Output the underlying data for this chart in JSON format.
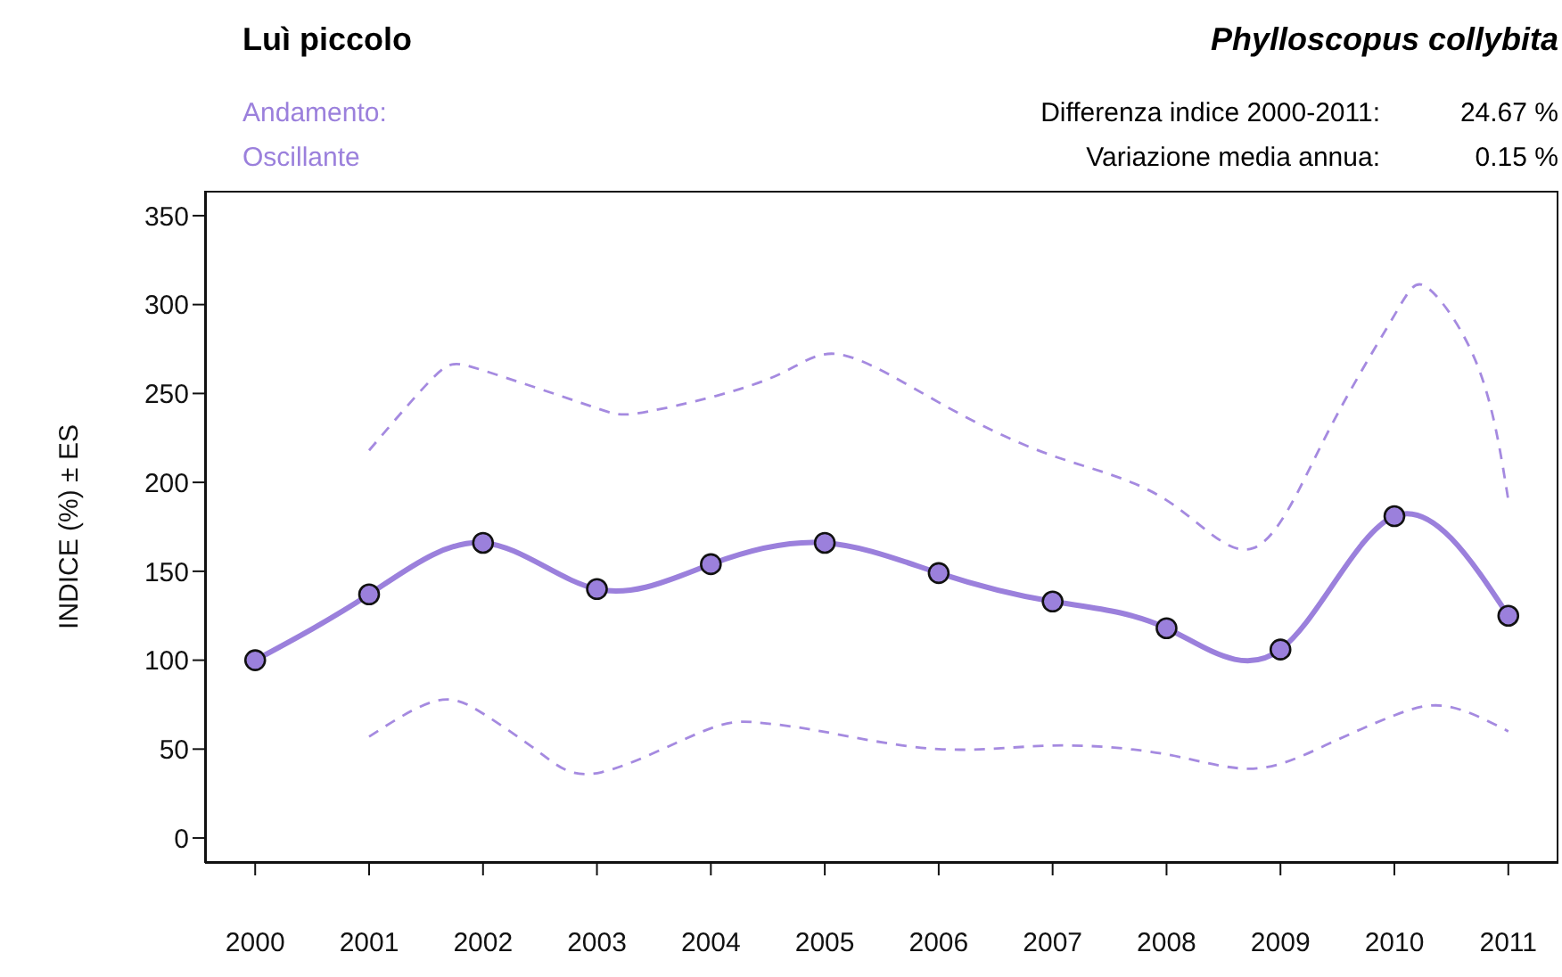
{
  "chart_data": {
    "type": "line",
    "title": "Luì piccolo",
    "subtitle": "Phylloscopus collybita",
    "ylabel": "INDICE (%) ± ES",
    "annotations": [
      "Andamento:",
      "Oscillante",
      "Differenza indice 2000-2011:",
      "24.67 %",
      "Variazione media annua:",
      "0.15 %"
    ],
    "series": [
      {
        "color": "#9b80dc",
        "marker": "circle",
        "line_style": "solid",
        "x": [
          2000,
          2001,
          2002,
          2003,
          2004,
          2005,
          2006,
          2007,
          2008,
          2009,
          2010,
          2011
        ],
        "values": [
          100,
          137,
          166,
          140,
          154,
          166,
          149,
          133,
          118,
          106,
          181,
          125
        ]
      },
      {
        "color": "#a58ae0",
        "marker": "none",
        "line_style": "dashed",
        "x": [
          2001,
          2001.58,
          2002,
          2002.94,
          2003.46,
          2004.5,
          2005.13,
          2006,
          2007,
          2008,
          2008.76,
          2009.39,
          2010,
          2010.3,
          2010.74,
          2011
        ],
        "values": [
          218,
          260,
          263,
          243,
          240,
          258,
          272,
          245,
          215,
          190,
          163,
          225,
          294,
          309,
          264,
          190
        ]
      },
      {
        "color": "#a58ae0",
        "marker": "none",
        "line_style": "dashed",
        "x": [
          2001,
          2001.58,
          2002,
          2002.52,
          2003.04,
          2003.93,
          2004.4,
          2004.97,
          2006,
          2007,
          2008,
          2008.76,
          2009.39,
          2010,
          2010.47,
          2011
        ],
        "values": [
          57,
          77,
          70,
          47,
          37,
          60,
          65,
          60,
          50,
          52,
          47,
          39,
          52,
          69,
          74,
          60
        ]
      }
    ],
    "xlim": [
      1999.56,
      2011.44
    ],
    "xticks": [
      2000,
      2001,
      2002,
      2003,
      2004,
      2005,
      2006,
      2007,
      2008,
      2009,
      2010,
      2011
    ],
    "ylim": [
      -14,
      364
    ],
    "yticks": [
      0,
      50,
      100,
      150,
      200,
      250,
      300,
      350
    ],
    "grid": false
  }
}
